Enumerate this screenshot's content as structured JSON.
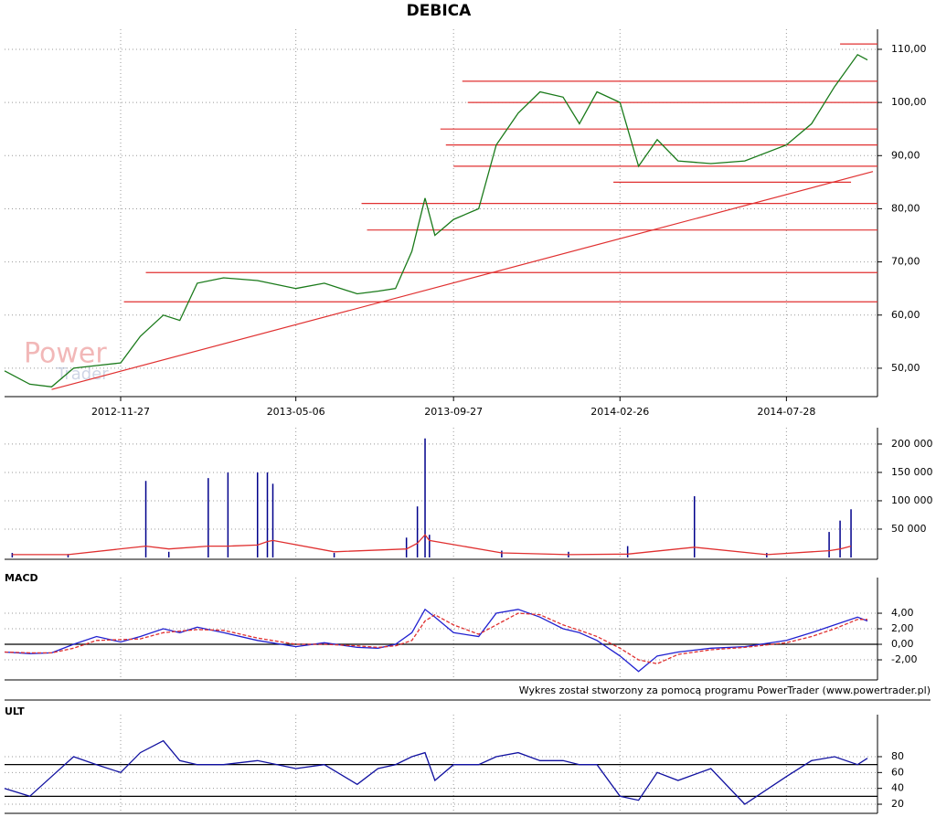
{
  "chart_data": [
    {
      "type": "line",
      "title": "DEBICA",
      "watermark": [
        "Power",
        "Trader"
      ],
      "x": [
        "2012-08-13",
        "2012-09-05",
        "2012-09-25",
        "2012-10-15",
        "2012-11-05",
        "2012-11-27",
        "2012-12-15",
        "2013-01-05",
        "2013-01-20",
        "2013-02-05",
        "2013-03-01",
        "2013-04-01",
        "2013-05-06",
        "2013-06-01",
        "2013-07-01",
        "2013-07-20",
        "2013-08-05",
        "2013-08-20",
        "2013-09-01",
        "2013-09-10",
        "2013-09-27",
        "2013-10-20",
        "2013-11-05",
        "2013-11-25",
        "2013-12-15",
        "2014-01-05",
        "2014-01-20",
        "2014-02-05",
        "2014-02-26",
        "2014-03-15",
        "2014-04-01",
        "2014-04-20",
        "2014-05-20",
        "2014-06-20",
        "2014-07-28",
        "2014-08-20",
        "2014-09-10",
        "2014-10-01",
        "2014-10-10"
      ],
      "series": [
        {
          "color": "#1a7a1a",
          "values": [
            49.5,
            47,
            46.5,
            50,
            50.5,
            51,
            56,
            60,
            59,
            66,
            67,
            66.5,
            65,
            66,
            64,
            64.5,
            65,
            72,
            82,
            75,
            78,
            80,
            92,
            98,
            102,
            101,
            96,
            102,
            100,
            88,
            93,
            89,
            88.5,
            89,
            92,
            96,
            103,
            109,
            108
          ]
        }
      ],
      "xlim": [
        "2012-08-13",
        "2014-10-15"
      ],
      "xticks": [
        "2012-11-27",
        "2013-05-06",
        "2013-09-27",
        "2014-02-26",
        "2014-07-28"
      ],
      "ylim": [
        45,
        112.4
      ],
      "yticks": [
        {
          "value": 50,
          "label": "50,00"
        },
        {
          "value": 60,
          "label": "60,00"
        },
        {
          "value": 70,
          "label": "70,00"
        },
        {
          "value": 80,
          "label": "80,00"
        },
        {
          "value": 90,
          "label": "90,00"
        },
        {
          "value": 100,
          "label": "100,00"
        },
        {
          "value": 110,
          "label": "110,00"
        }
      ],
      "grid": true,
      "hline_color": "#e03030",
      "hlines": [
        {
          "value": 111,
          "from": "2014-09-15"
        },
        {
          "value": 104,
          "from": "2013-10-05"
        },
        {
          "value": 100,
          "from": "2013-10-10"
        },
        {
          "value": 95,
          "from": "2013-09-15"
        },
        {
          "value": 92,
          "from": "2013-09-20"
        },
        {
          "value": 88,
          "from": "2013-09-27"
        },
        {
          "value": 85,
          "from": "2014-02-20",
          "to": "2014-09-25"
        },
        {
          "value": 81,
          "from": "2013-07-05"
        },
        {
          "value": 76,
          "from": "2013-07-10"
        },
        {
          "value": 68,
          "from": "2012-12-20"
        },
        {
          "value": 62.5,
          "from": "2012-11-30"
        }
      ],
      "trendline": {
        "x": [
          "2012-09-25",
          "2014-10-15"
        ],
        "values": [
          46,
          87
        ]
      }
    },
    {
      "type": "bar",
      "x": [
        "2012-08-20",
        "2012-10-10",
        "2012-12-20",
        "2013-01-10",
        "2013-02-15",
        "2013-03-05",
        "2013-04-01",
        "2013-04-10",
        "2013-04-15",
        "2013-06-10",
        "2013-08-15",
        "2013-08-25",
        "2013-09-01",
        "2013-09-05",
        "2013-11-10",
        "2014-01-10",
        "2014-03-05",
        "2014-05-05",
        "2014-07-10",
        "2014-09-05",
        "2014-09-15",
        "2014-09-25"
      ],
      "values": [
        8000,
        6000,
        135000,
        10000,
        140000,
        150000,
        150000,
        150000,
        130000,
        8000,
        35000,
        90000,
        210000,
        40000,
        12000,
        10000,
        20000,
        108000,
        8000,
        45000,
        65000,
        85000
      ],
      "color": "#00008b",
      "ma": {
        "color": "#e03030",
        "values": [
          5000,
          5000,
          20000,
          15000,
          20000,
          20000,
          22000,
          28000,
          30000,
          10000,
          15000,
          25000,
          40000,
          30000,
          8000,
          5000,
          6000,
          18000,
          5000,
          12000,
          15000,
          20000
        ]
      },
      "ylim": [
        0,
        216000
      ],
      "yticks": [
        {
          "value": 50000,
          "label": "50 000"
        },
        {
          "value": 100000,
          "label": "100 000"
        },
        {
          "value": 150000,
          "label": "150 000"
        },
        {
          "value": 200000,
          "label": "200 000"
        }
      ],
      "grid": true
    },
    {
      "type": "line",
      "title": "MACD",
      "note": "Wykres został stworzony za pomocą programu PowerTrader (www.powertrader.pl)",
      "x": [
        "2012-08-13",
        "2012-09-05",
        "2012-09-25",
        "2012-10-15",
        "2012-11-05",
        "2012-11-27",
        "2012-12-15",
        "2013-01-05",
        "2013-01-20",
        "2013-02-05",
        "2013-03-01",
        "2013-04-01",
        "2013-05-06",
        "2013-06-01",
        "2013-07-01",
        "2013-07-20",
        "2013-08-05",
        "2013-08-20",
        "2013-09-01",
        "2013-09-10",
        "2013-09-27",
        "2013-10-20",
        "2013-11-05",
        "2013-11-25",
        "2013-12-15",
        "2014-01-05",
        "2014-01-20",
        "2014-02-05",
        "2014-02-26",
        "2014-03-15",
        "2014-04-01",
        "2014-04-20",
        "2014-05-20",
        "2014-06-20",
        "2014-07-28",
        "2014-08-20",
        "2014-09-10",
        "2014-10-01",
        "2014-10-10"
      ],
      "series": [
        {
          "color": "#2020d0",
          "values": [
            -1,
            -1.2,
            -1.1,
            0,
            1,
            0.3,
            1,
            2,
            1.5,
            2.2,
            1.5,
            0.5,
            -0.3,
            0.2,
            -0.4,
            -0.5,
            0,
            1.5,
            4.5,
            3.5,
            1.5,
            1,
            4,
            4.5,
            3.5,
            2,
            1.5,
            0.5,
            -1.5,
            -3.5,
            -1.5,
            -1,
            -0.5,
            -0.3,
            0.5,
            1.5,
            2.5,
            3.5,
            3
          ]
        },
        {
          "color": "#e03030",
          "values": [
            -1,
            -1.1,
            -1.1,
            -0.5,
            0.5,
            0.6,
            0.7,
            1.5,
            1.7,
            1.9,
            1.8,
            0.8,
            0,
            0,
            -0.2,
            -0.4,
            -0.2,
            0.5,
            3,
            3.8,
            2.5,
            1.3,
            2.5,
            4,
            3.8,
            2.5,
            1.8,
            1,
            -0.5,
            -2,
            -2.5,
            -1.3,
            -0.7,
            -0.4,
            0.2,
            1,
            2,
            3.2,
            3.2
          ]
        }
      ],
      "ylim": [
        -4.35,
        7.65
      ],
      "yticks": [
        {
          "value": -2,
          "label": "-2,00"
        },
        {
          "value": 0,
          "label": "0,00"
        },
        {
          "value": 2,
          "label": "2,00"
        },
        {
          "value": 4,
          "label": "4,00"
        }
      ],
      "hline_color": "#000000",
      "hlines": [
        {
          "value": 0
        }
      ],
      "grid": true
    },
    {
      "type": "line",
      "title": "ULT",
      "x": [
        "2012-08-13",
        "2012-09-05",
        "2012-09-25",
        "2012-10-15",
        "2012-11-05",
        "2012-11-27",
        "2012-12-15",
        "2013-01-05",
        "2013-01-20",
        "2013-02-05",
        "2013-03-01",
        "2013-04-01",
        "2013-05-06",
        "2013-06-01",
        "2013-07-01",
        "2013-07-20",
        "2013-08-05",
        "2013-08-20",
        "2013-09-01",
        "2013-09-10",
        "2013-09-27",
        "2013-10-20",
        "2013-11-05",
        "2013-11-25",
        "2013-12-15",
        "2014-01-05",
        "2014-01-20",
        "2014-02-05",
        "2014-02-26",
        "2014-03-15",
        "2014-04-01",
        "2014-04-20",
        "2014-05-20",
        "2014-06-20",
        "2014-07-28",
        "2014-08-20",
        "2014-09-10",
        "2014-10-01",
        "2014-10-10"
      ],
      "series": [
        {
          "color": "#1010a0",
          "values": [
            40,
            30,
            55,
            80,
            70,
            60,
            85,
            100,
            75,
            70,
            70,
            75,
            65,
            70,
            45,
            65,
            70,
            80,
            85,
            50,
            70,
            70,
            80,
            85,
            75,
            75,
            70,
            70,
            30,
            25,
            60,
            50,
            65,
            20,
            55,
            75,
            80,
            70,
            78
          ]
        }
      ],
      "ylim": [
        10.8,
        123.8
      ],
      "yticks": [
        20,
        40,
        60,
        80
      ],
      "hline_color": "#000000",
      "hlines": [
        {
          "value": 70
        },
        {
          "value": 30
        }
      ],
      "grid": true
    }
  ]
}
